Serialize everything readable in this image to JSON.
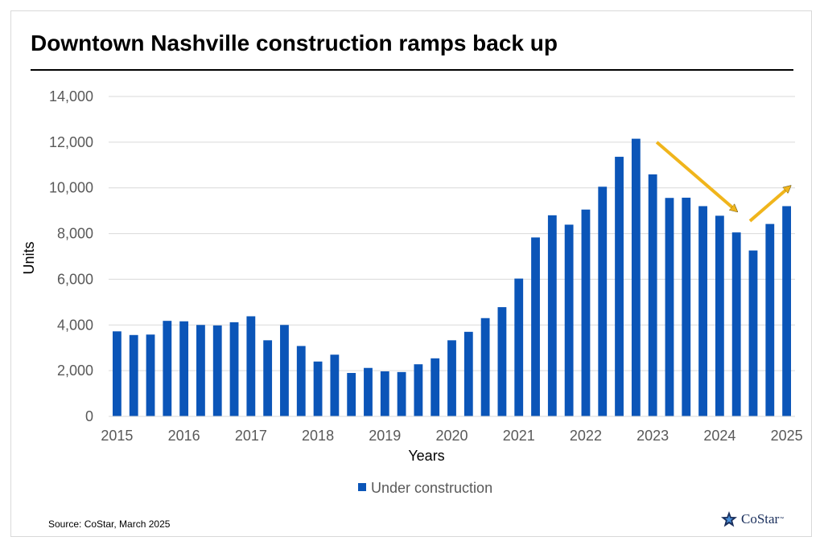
{
  "title": "Downtown Nashville construction ramps back up",
  "source": "Source: CoStar, March 2025",
  "logo": {
    "text": "CoStar",
    "tm": "™"
  },
  "colors": {
    "bar": "#0b55b8",
    "arrow": "#f0b51c",
    "grid": "#d9d9d9",
    "axis_text": "#595959"
  },
  "chart_data": {
    "type": "bar",
    "title": "Downtown Nashville construction ramps back up",
    "xlabel": "Years",
    "ylabel": "Units",
    "ylim": [
      0,
      14000
    ],
    "yticks": [
      0,
      2000,
      4000,
      6000,
      8000,
      10000,
      12000,
      14000
    ],
    "ytick_labels": [
      "0",
      "2,000",
      "4,000",
      "6,000",
      "8,000",
      "10,000",
      "12,000",
      "14,000"
    ],
    "xtick_labels": [
      "2015",
      "2016",
      "2017",
      "2018",
      "2019",
      "2020",
      "2021",
      "2022",
      "2023",
      "2024",
      "2025"
    ],
    "grid": true,
    "legend": {
      "position": "bottom",
      "entries": [
        "Under construction"
      ]
    },
    "series": [
      {
        "name": "Under construction",
        "values": [
          3720,
          3560,
          3580,
          4180,
          4160,
          4000,
          3980,
          4120,
          4380,
          3330,
          4000,
          3080,
          2400,
          2700,
          1900,
          2120,
          1970,
          1940,
          2280,
          2540,
          3330,
          3700,
          4300,
          4780,
          6030,
          7830,
          8800,
          8390,
          9050,
          10050,
          11360,
          12150,
          10590,
          9560,
          9570,
          9200,
          8780,
          8050,
          7260,
          8420,
          9200
        ]
      }
    ],
    "annotations": [
      {
        "type": "arrow",
        "direction": "down",
        "from_period": "2022 Q4",
        "to_period": "2024 Q2"
      },
      {
        "type": "arrow",
        "direction": "up",
        "from_period": "2024 Q2",
        "to_period": "2025 Q1"
      }
    ]
  }
}
